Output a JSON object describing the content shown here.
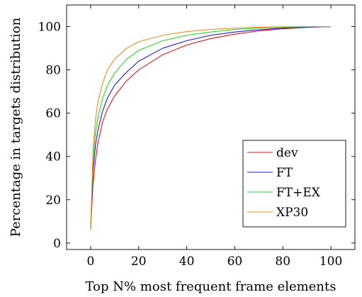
{
  "chart_data": {
    "type": "line",
    "xlabel": "Top N% most frequent frame elements",
    "ylabel": "Percentage in targets distribution",
    "xlim": [
      -10,
      110
    ],
    "ylim": [
      -3,
      110
    ],
    "x_ticks": [
      0,
      20,
      40,
      60,
      80,
      100
    ],
    "y_ticks": [
      0,
      20,
      40,
      60,
      80,
      100
    ],
    "grid": false,
    "legend_position": "bottom-right",
    "x": [
      0,
      1,
      2,
      3,
      5,
      7,
      10,
      15,
      20,
      30,
      40,
      50,
      60,
      70,
      80,
      90,
      100
    ],
    "series": [
      {
        "name": "dev",
        "color": "#e8121a",
        "values": [
          7,
          27,
          38,
          46,
          56,
          62,
          68,
          75,
          80,
          87,
          91.5,
          94.5,
          96.5,
          98,
          99,
          99.6,
          100
        ]
      },
      {
        "name": "FT",
        "color": "#1a1ad4",
        "values": [
          7,
          33,
          45,
          52,
          61,
          67,
          73,
          79,
          84,
          90,
          93.5,
          96,
          97.5,
          98.5,
          99.3,
          99.7,
          100
        ]
      },
      {
        "name": "FT+EX",
        "color": "#22d822",
        "values": [
          6,
          38,
          51,
          58,
          67,
          73,
          78.5,
          85,
          89,
          93.5,
          96,
          97.5,
          98.7,
          99.3,
          99.7,
          99.9,
          100
        ]
      },
      {
        "name": "XP30",
        "color": "#f08c1c",
        "values": [
          7,
          43,
          57,
          65,
          74,
          80,
          85,
          90,
          93,
          96,
          97.7,
          98.7,
          99.3,
          99.7,
          99.9,
          100,
          100
        ]
      }
    ]
  }
}
